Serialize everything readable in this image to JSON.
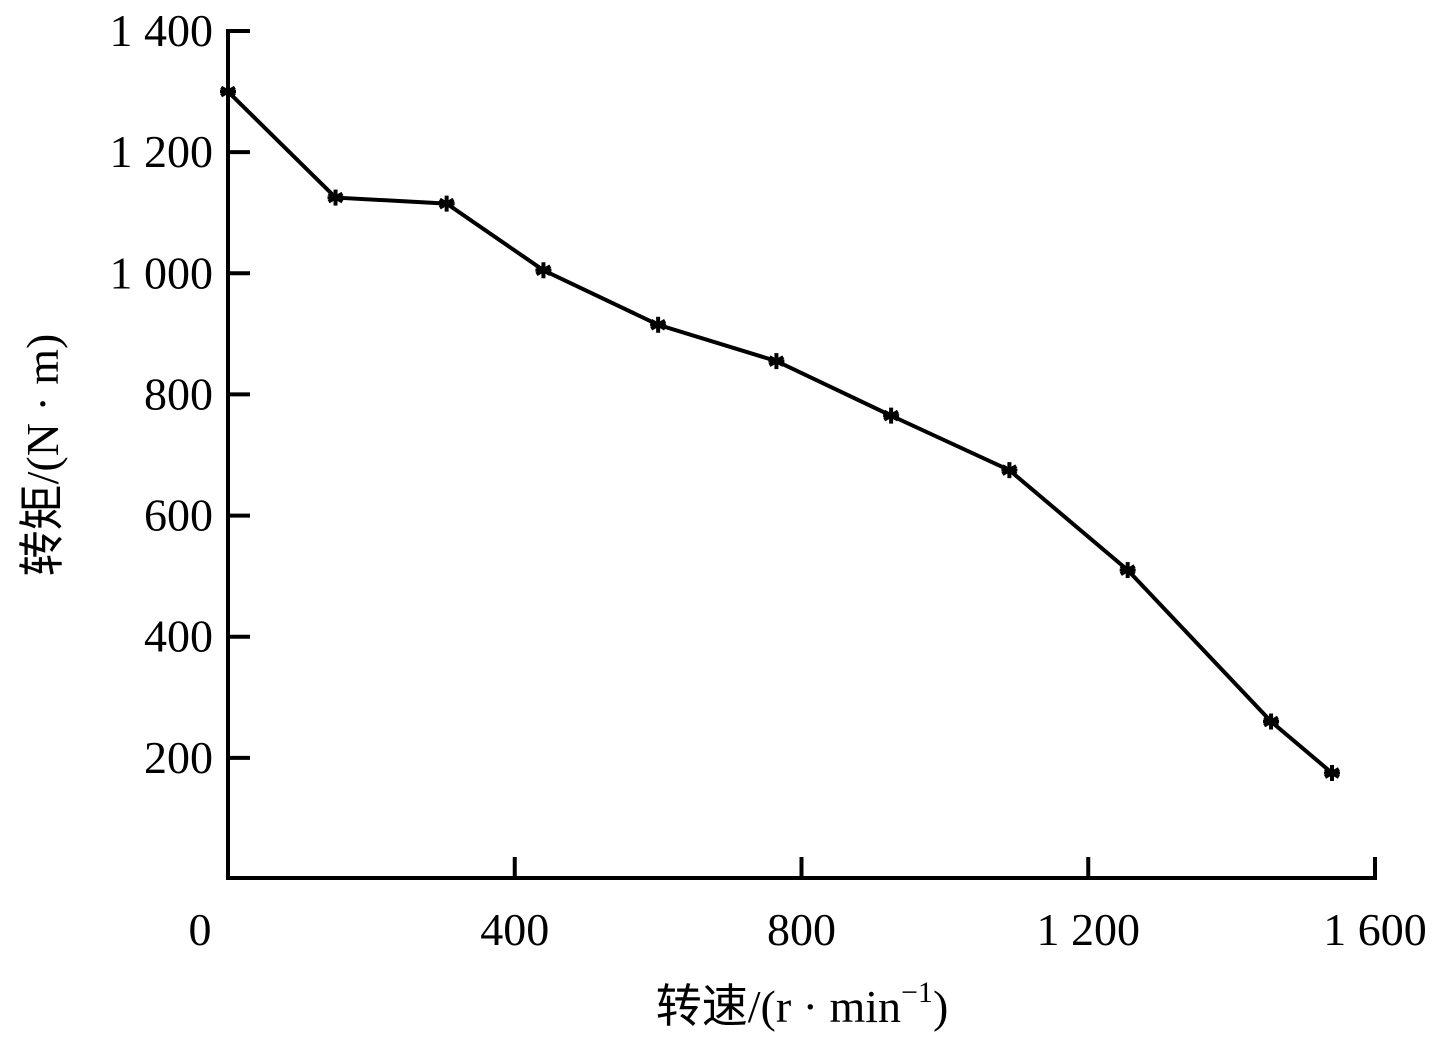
{
  "chart_data": {
    "type": "line",
    "title": "",
    "xlabel": "转速/(r·min⁻¹)",
    "ylabel": "转矩/(N·m)",
    "xlim": [
      0,
      1600
    ],
    "ylim": [
      0,
      1400
    ],
    "x_ticks": [
      0,
      400,
      800,
      1200,
      1600
    ],
    "x_tick_labels": [
      "0",
      "400",
      "800",
      "1 200",
      "1 600"
    ],
    "y_ticks": [
      200,
      400,
      600,
      800,
      1000,
      1200,
      1400
    ],
    "y_tick_labels": [
      "200",
      "400",
      "600",
      "800",
      "1 000",
      "1 200",
      "1 400"
    ],
    "grid": false,
    "legend": null,
    "marker": "asterisk",
    "series": [
      {
        "name": "转矩",
        "color": "#000000",
        "x": [
          0,
          150,
          305,
          440,
          600,
          765,
          925,
          1090,
          1255,
          1455,
          1540
        ],
        "y": [
          1300,
          1125,
          1115,
          1005,
          915,
          855,
          765,
          675,
          510,
          260,
          175
        ]
      }
    ]
  },
  "axes": {
    "x_title_main": "转速/(r · min",
    "x_title_sup": "−1",
    "x_title_end": ")",
    "y_title": "转矩/(N · m)"
  }
}
